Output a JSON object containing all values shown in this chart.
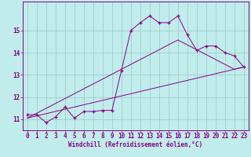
{
  "xlabel": "Windchill (Refroidissement éolien,°C)",
  "bg_color": "#c0ecec",
  "grid_color": "#a0cccc",
  "line_color": "#880088",
  "x_data": [
    0,
    1,
    2,
    3,
    4,
    5,
    6,
    7,
    8,
    9,
    10,
    11,
    12,
    13,
    14,
    15,
    16,
    17,
    18,
    19,
    20,
    21,
    22,
    23
  ],
  "y_main": [
    11.2,
    11.2,
    10.85,
    11.1,
    11.55,
    11.05,
    11.35,
    11.35,
    11.4,
    11.4,
    13.2,
    15.0,
    15.35,
    15.65,
    15.35,
    15.35,
    15.65,
    14.8,
    14.1,
    14.3,
    14.3,
    14.0,
    13.85,
    13.35
  ],
  "y_linear1": [
    11.05,
    11.27,
    11.49,
    11.71,
    11.93,
    12.15,
    12.37,
    12.59,
    12.81,
    13.03,
    13.25,
    13.47,
    13.69,
    13.91,
    14.13,
    14.35,
    14.57,
    14.35,
    14.13,
    13.91,
    13.69,
    13.47,
    13.25,
    13.35
  ],
  "y_linear2": [
    11.05,
    11.15,
    11.25,
    11.35,
    11.45,
    11.55,
    11.65,
    11.75,
    11.85,
    11.95,
    12.05,
    12.15,
    12.25,
    12.35,
    12.45,
    12.55,
    12.65,
    12.75,
    12.85,
    12.95,
    13.05,
    13.15,
    13.25,
    13.35
  ],
  "ylim": [
    10.5,
    16.3
  ],
  "xlim": [
    -0.5,
    23.5
  ],
  "yticks": [
    11,
    12,
    13,
    14,
    15
  ],
  "xticks": [
    0,
    1,
    2,
    3,
    4,
    5,
    6,
    7,
    8,
    9,
    10,
    11,
    12,
    13,
    14,
    15,
    16,
    17,
    18,
    19,
    20,
    21,
    22,
    23
  ],
  "tick_fontsize": 5.5,
  "xlabel_fontsize": 5.5
}
